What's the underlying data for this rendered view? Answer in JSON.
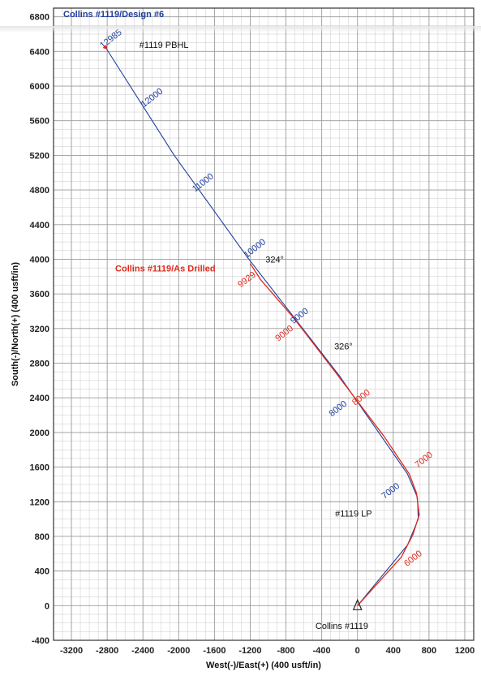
{
  "chart_data": {
    "type": "line",
    "xlabel": "West(-)/East(+) (400 usft/in)",
    "ylabel": "South(-)/North(+) (400 usft/in)",
    "xlim": [
      -3400,
      1300
    ],
    "ylim": [
      -400,
      6900
    ],
    "x_ticks": [
      -3200,
      -2800,
      -2400,
      -2000,
      -1600,
      -1200,
      -800,
      -400,
      0,
      400,
      800,
      1200
    ],
    "y_ticks": [
      -400,
      0,
      400,
      800,
      1200,
      1600,
      2000,
      2400,
      2800,
      3200,
      3600,
      4000,
      4400,
      4800,
      5200,
      5600,
      6000,
      6400,
      6800
    ],
    "grid": true,
    "series": [
      {
        "name": "Collins #1119/Design #6",
        "color": "#1f3f9c",
        "points": [
          [
            0,
            0
          ],
          [
            560,
            700
          ],
          [
            680,
            1000
          ],
          [
            670,
            1250
          ],
          [
            560,
            1520
          ],
          [
            -200,
            2650
          ],
          [
            -1230,
            4020
          ],
          [
            -2050,
            5200
          ],
          [
            -2820,
            6450
          ]
        ],
        "depth_labels": [
          {
            "text": "7000",
            "x": 390,
            "y": 1300
          },
          {
            "text": "8000",
            "x": -200,
            "y": 2250
          },
          {
            "text": "9000",
            "x": -630,
            "y": 3320
          },
          {
            "text": "10000",
            "x": -1130,
            "y": 4100
          },
          {
            "text": "11000",
            "x": -1710,
            "y": 4860
          },
          {
            "text": "12000",
            "x": -2280,
            "y": 5840
          },
          {
            "text": "12985",
            "x": -2740,
            "y": 6520
          }
        ]
      },
      {
        "name": "Collins #1119/As Drilled",
        "color": "#e02a1e",
        "points": [
          [
            0,
            0
          ],
          [
            490,
            560
          ],
          [
            620,
            820
          ],
          [
            690,
            1050
          ],
          [
            660,
            1300
          ],
          [
            580,
            1520
          ],
          [
            300,
            1950
          ],
          [
            -250,
            2700
          ],
          [
            -720,
            3330
          ],
          [
            -1080,
            3760
          ],
          [
            -1200,
            3950
          ]
        ],
        "depth_labels": [
          {
            "text": "6000",
            "x": 640,
            "y": 520
          },
          {
            "text": "7000",
            "x": 760,
            "y": 1660
          },
          {
            "text": "8000",
            "x": 60,
            "y": 2380
          },
          {
            "text": "9000",
            "x": -800,
            "y": 3120
          },
          {
            "text": "9929",
            "x": -1220,
            "y": 3740
          }
        ]
      }
    ],
    "annotations": [
      {
        "text": "#1119 PBHL",
        "x": -2440,
        "y": 6440,
        "color": "#111111"
      },
      {
        "text": "324°",
        "x": -1030,
        "y": 3960,
        "color": "#111111"
      },
      {
        "text": "326°",
        "x": -260,
        "y": 2960,
        "color": "#111111"
      },
      {
        "text": "#1119 LP",
        "x": -250,
        "y": 1030,
        "color": "#111111"
      },
      {
        "text": "Collins #1119",
        "x": -470,
        "y": -270,
        "color": "#111111"
      }
    ],
    "legend": {
      "placement": "top-left"
    }
  }
}
